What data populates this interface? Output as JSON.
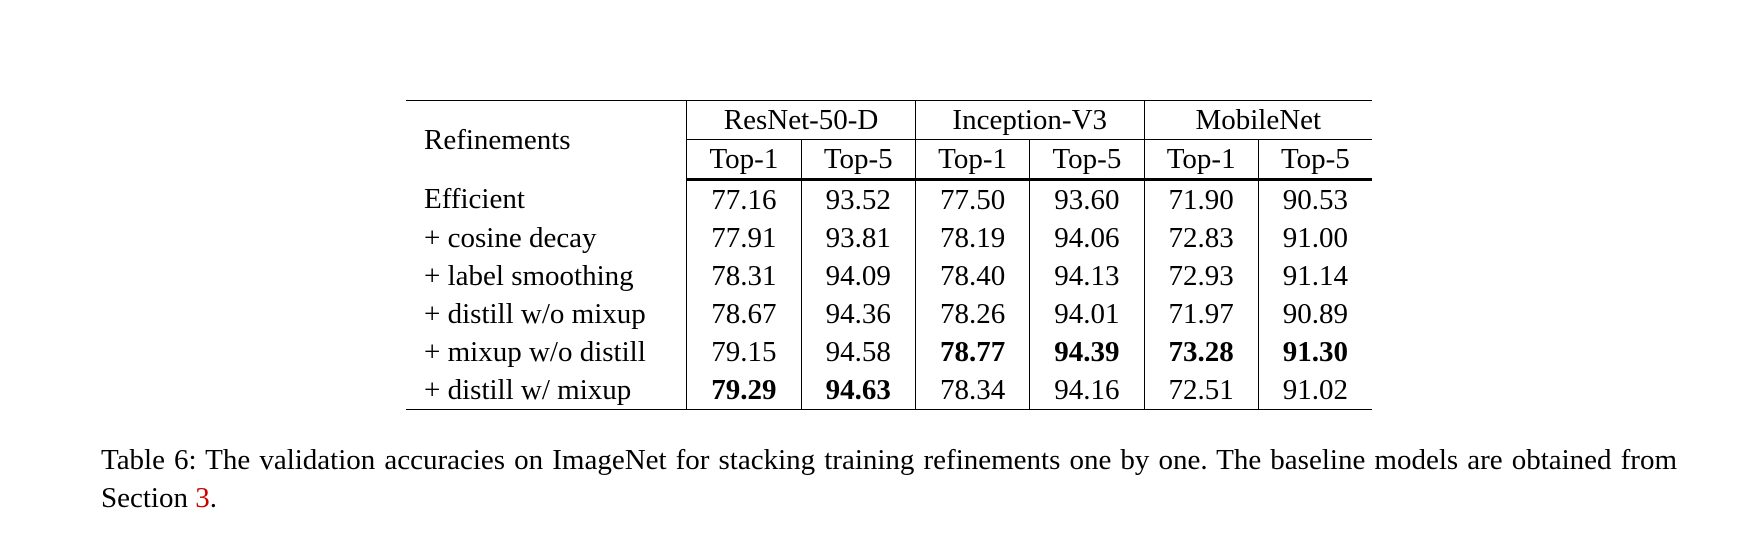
{
  "table": {
    "header": {
      "row_label": "Refinements",
      "groups": [
        {
          "name": "ResNet-50-D",
          "cols": [
            "Top-1",
            "Top-5"
          ]
        },
        {
          "name": "Inception-V3",
          "cols": [
            "Top-1",
            "Top-5"
          ]
        },
        {
          "name": "MobileNet",
          "cols": [
            "Top-1",
            "Top-5"
          ]
        }
      ]
    },
    "rows": [
      {
        "label": "Efficient",
        "values": [
          "77.16",
          "93.52",
          "77.50",
          "93.60",
          "71.90",
          "90.53"
        ]
      },
      {
        "label": "+ cosine decay",
        "values": [
          "77.91",
          "93.81",
          "78.19",
          "94.06",
          "72.83",
          "91.00"
        ]
      },
      {
        "label": "+ label smoothing",
        "values": [
          "78.31",
          "94.09",
          "78.40",
          "94.13",
          "72.93",
          "91.14"
        ]
      },
      {
        "label": "+ distill w/o mixup",
        "values": [
          "78.67",
          "94.36",
          "78.26",
          "94.01",
          "71.97",
          "90.89"
        ]
      },
      {
        "label": "+ mixup w/o distill",
        "values": [
          "79.15",
          "94.58",
          "78.77",
          "94.39",
          "73.28",
          "91.30"
        ]
      },
      {
        "label": "+ distill w/ mixup",
        "values": [
          "79.29",
          "94.63",
          "78.34",
          "94.16",
          "72.51",
          "91.02"
        ]
      }
    ],
    "bold_cells": [
      [
        4,
        2
      ],
      [
        4,
        3
      ],
      [
        4,
        4
      ],
      [
        4,
        5
      ],
      [
        5,
        0
      ],
      [
        5,
        1
      ]
    ]
  },
  "caption": {
    "text": "Table 6: The validation accuracies on ImageNet for stacking training refinements one by one. The baseline models are obtained from Section ",
    "ref": "3",
    "end": "."
  },
  "colors": {
    "text": "#000000",
    "reference_link": "#cc0000",
    "background": "#ffffff"
  }
}
